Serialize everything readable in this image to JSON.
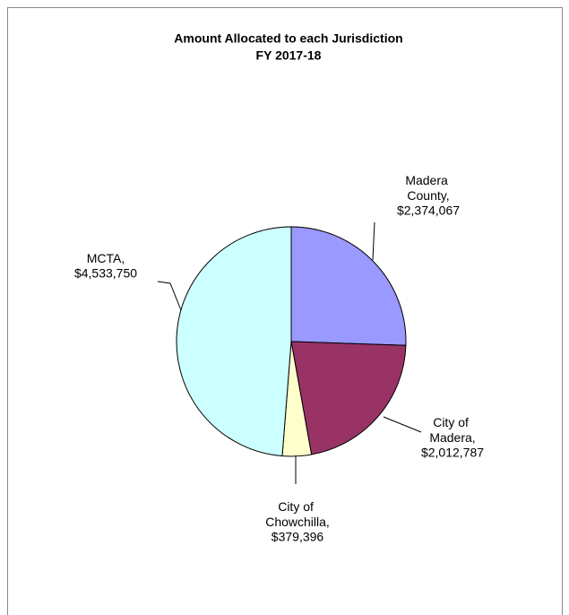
{
  "chart_data": {
    "type": "pie",
    "title": "Amount Allocated to each Jurisdiction",
    "subtitle": "FY 2017-18",
    "categories": [
      "Madera County,",
      "City of Madera,",
      "City of Chowchilla,",
      "MCTA,"
    ],
    "values": [
      2374067,
      2012787,
      379396,
      4533750
    ],
    "value_labels": [
      "$2,374,067",
      "$2,012,787",
      "$379,396",
      "$4,533,750"
    ],
    "colors": [
      "#9999ff",
      "#993366",
      "#ffffcc",
      "#ccffff"
    ]
  }
}
